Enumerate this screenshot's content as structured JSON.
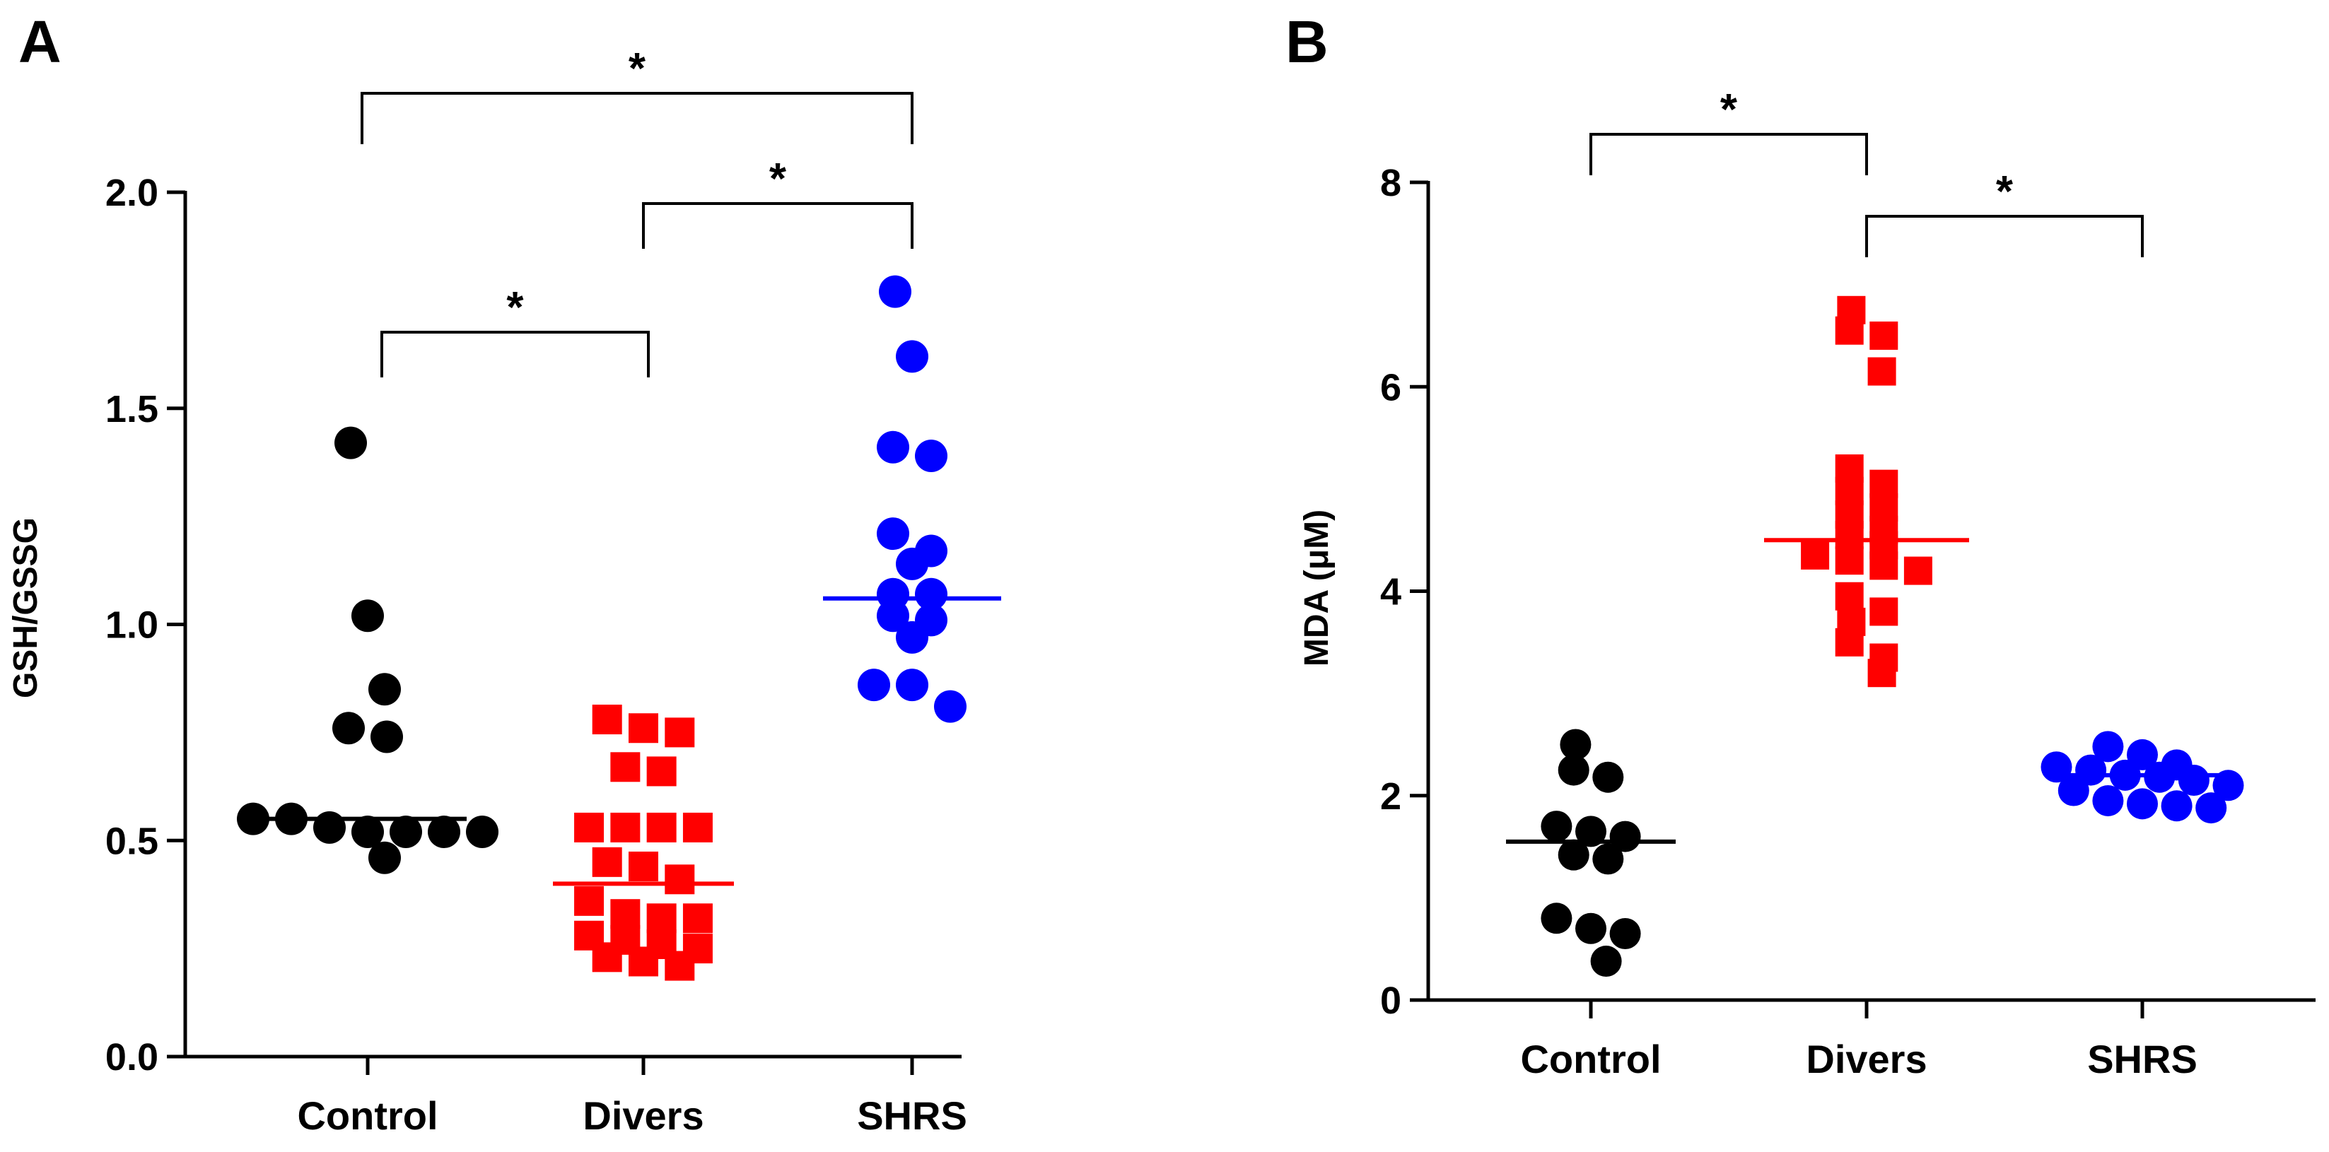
{
  "chart_data": [
    {
      "panel": "A",
      "type": "scatter",
      "xlabel": "",
      "ylabel": "GSH/GSSG",
      "ylim": [
        0,
        2
      ],
      "yticks": [
        0.0,
        0.5,
        1.0,
        1.5,
        2.0
      ],
      "ytick_labels": [
        "0.0",
        "0.5",
        "1.0",
        "1.5",
        "2.0"
      ],
      "categories": [
        "Control",
        "Divers",
        "SHRS"
      ],
      "series": [
        {
          "name": "Control",
          "marker": "circle",
          "color": "#000000",
          "median": 0.55,
          "values": [
            1.42,
            1.02,
            0.85,
            0.74,
            0.76,
            0.55,
            0.52,
            0.52,
            0.52,
            0.52,
            0.55,
            0.53,
            0.46
          ]
        },
        {
          "name": "Divers",
          "marker": "square",
          "color": "#ff0000",
          "median": 0.4,
          "values": [
            0.78,
            0.76,
            0.75,
            0.66,
            0.67,
            0.53,
            0.53,
            0.53,
            0.53,
            0.45,
            0.44,
            0.41,
            0.36,
            0.32,
            0.33,
            0.32,
            0.28,
            0.27,
            0.25,
            0.23,
            0.22,
            0.26,
            0.21
          ]
        },
        {
          "name": "SHRS",
          "marker": "circle",
          "color": "#0000ff",
          "median": 1.06,
          "values": [
            1.77,
            1.62,
            1.41,
            1.39,
            1.21,
            1.17,
            1.14,
            1.07,
            1.07,
            1.01,
            0.97,
            0.86,
            0.81,
            0.86,
            1.02
          ]
        }
      ],
      "significance": [
        {
          "from": "Control",
          "to": "SHRS",
          "label": "*"
        },
        {
          "from": "Divers",
          "to": "SHRS",
          "label": "*"
        },
        {
          "from": "Control",
          "to": "Divers",
          "label": "*"
        }
      ]
    },
    {
      "panel": "B",
      "type": "scatter",
      "xlabel": "",
      "ylabel": "MDA (μM)",
      "ylim": [
        0,
        8
      ],
      "yticks": [
        0,
        2,
        4,
        6,
        8
      ],
      "ytick_labels": [
        "0",
        "2",
        "4",
        "6",
        "8"
      ],
      "categories": [
        "Control",
        "Divers",
        "SHRS"
      ],
      "series": [
        {
          "name": "Control",
          "marker": "circle",
          "color": "#000000",
          "median": 1.55,
          "values": [
            2.5,
            2.25,
            2.18,
            1.7,
            1.6,
            1.65,
            1.42,
            1.38,
            0.8,
            0.7,
            0.65,
            0.38
          ]
        },
        {
          "name": "Divers",
          "marker": "square",
          "color": "#ff0000",
          "median": 4.5,
          "values": [
            6.75,
            6.55,
            6.5,
            6.15,
            5.2,
            5.05,
            4.98,
            4.82,
            4.75,
            4.6,
            4.55,
            4.45,
            4.35,
            4.3,
            4.25,
            4.2,
            3.95,
            3.8,
            3.7,
            3.5,
            3.35,
            3.2
          ]
        },
        {
          "name": "SHRS",
          "marker": "circle",
          "color": "#0000ff",
          "median": 2.2,
          "values": [
            2.48,
            2.4,
            2.3,
            2.28,
            2.25,
            2.2,
            2.18,
            2.15,
            2.1,
            2.05,
            1.95,
            1.92,
            1.9,
            1.88
          ]
        }
      ],
      "significance": [
        {
          "from": "Control",
          "to": "Divers",
          "label": "*"
        },
        {
          "from": "Divers",
          "to": "SHRS",
          "label": "*"
        }
      ]
    }
  ]
}
